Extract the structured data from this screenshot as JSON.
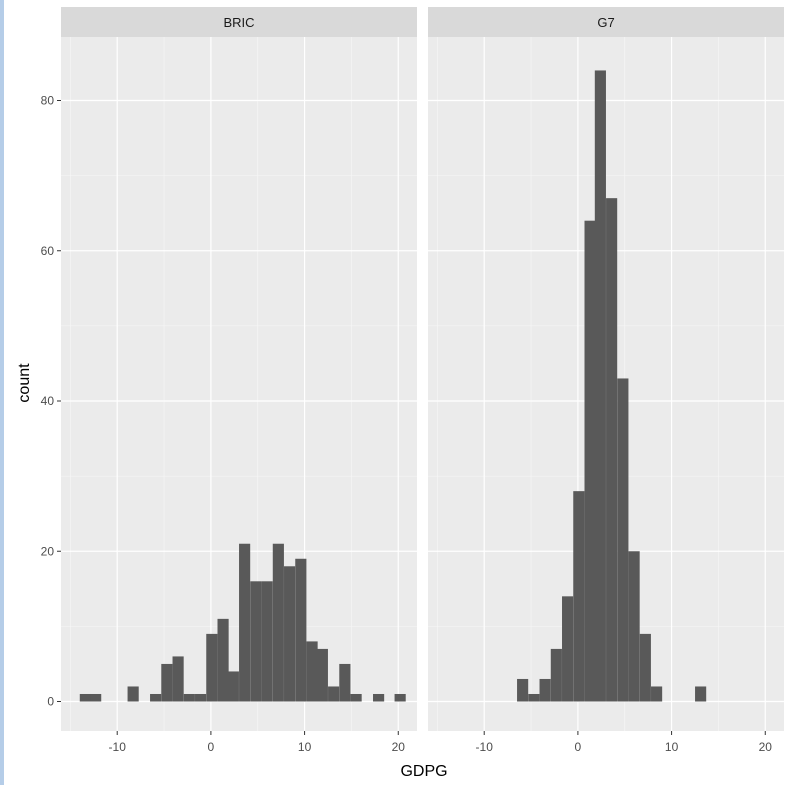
{
  "chart_data": {
    "type": "bar",
    "xlabel": "GDPG",
    "ylabel": "count",
    "xlim": [
      -16,
      22
    ],
    "ylim": [
      -4,
      88
    ],
    "x_ticks": [
      -10,
      0,
      10,
      20
    ],
    "y_ticks": [
      0,
      20,
      40,
      60,
      80
    ],
    "grid": true,
    "bin_width": 1.19,
    "colors": {
      "bar": "#595959",
      "panel": "#ebebeb",
      "grid_major": "#ffffff",
      "strip": "#d9d9d9"
    },
    "facets": [
      {
        "label": "BRIC",
        "bins": [
          {
            "x": -13.4,
            "count": 1
          },
          {
            "x": -12.3,
            "count": 1
          },
          {
            "x": -8.3,
            "count": 2
          },
          {
            "x": -5.9,
            "count": 1
          },
          {
            "x": -4.7,
            "count": 5
          },
          {
            "x": -3.5,
            "count": 6
          },
          {
            "x": -2.3,
            "count": 1
          },
          {
            "x": -1.1,
            "count": 1
          },
          {
            "x": 0.1,
            "count": 9
          },
          {
            "x": 1.3,
            "count": 11
          },
          {
            "x": 2.4,
            "count": 4
          },
          {
            "x": 3.6,
            "count": 21
          },
          {
            "x": 4.8,
            "count": 16
          },
          {
            "x": 6.0,
            "count": 16
          },
          {
            "x": 7.2,
            "count": 21
          },
          {
            "x": 8.4,
            "count": 18
          },
          {
            "x": 9.6,
            "count": 19
          },
          {
            "x": 10.8,
            "count": 8
          },
          {
            "x": 11.9,
            "count": 7
          },
          {
            "x": 13.1,
            "count": 2
          },
          {
            "x": 14.3,
            "count": 5
          },
          {
            "x": 15.5,
            "count": 1
          },
          {
            "x": 17.9,
            "count": 1
          },
          {
            "x": 20.2,
            "count": 1
          }
        ]
      },
      {
        "label": "G7",
        "bins": [
          {
            "x": -5.9,
            "count": 3
          },
          {
            "x": -4.7,
            "count": 1
          },
          {
            "x": -3.5,
            "count": 3
          },
          {
            "x": -2.3,
            "count": 7
          },
          {
            "x": -1.1,
            "count": 14
          },
          {
            "x": 0.1,
            "count": 28
          },
          {
            "x": 1.3,
            "count": 64
          },
          {
            "x": 2.4,
            "count": 84
          },
          {
            "x": 3.6,
            "count": 67
          },
          {
            "x": 4.8,
            "count": 43
          },
          {
            "x": 6.0,
            "count": 20
          },
          {
            "x": 7.2,
            "count": 9
          },
          {
            "x": 8.4,
            "count": 2
          },
          {
            "x": 13.1,
            "count": 2
          }
        ]
      }
    ]
  }
}
